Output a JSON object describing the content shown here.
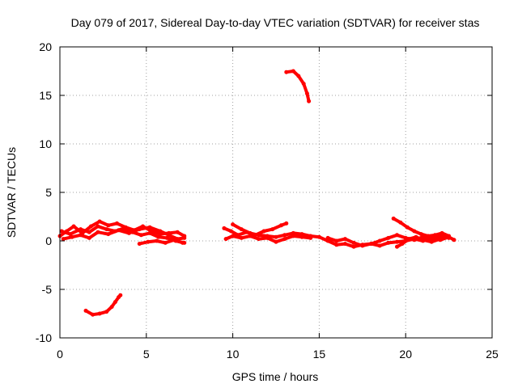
{
  "chart_data": {
    "type": "scatter",
    "title": "Day 079 of 2017, Sidereal Day-to-day VTEC variation (SDTVAR) for receiver stas",
    "xlabel": "GPS time / hours",
    "ylabel": "SDTVAR / TECUs",
    "xlim": [
      0,
      25
    ],
    "ylim": [
      -10,
      20
    ],
    "xticks": [
      0,
      5,
      10,
      15,
      20,
      25
    ],
    "yticks": [
      -10,
      -5,
      0,
      5,
      10,
      15,
      20
    ],
    "grid": true,
    "color": "#ff0000",
    "series": [
      {
        "name": "segment-1",
        "points": [
          [
            0.0,
            0.5
          ],
          [
            0.4,
            1.0
          ],
          [
            0.8,
            1.5
          ],
          [
            1.3,
            0.8
          ],
          [
            1.8,
            1.5
          ],
          [
            2.3,
            2.0
          ],
          [
            2.8,
            1.6
          ],
          [
            3.3,
            1.8
          ],
          [
            3.8,
            1.4
          ],
          [
            4.3,
            1.1
          ],
          [
            4.8,
            1.5
          ],
          [
            5.3,
            1.0
          ],
          [
            5.8,
            0.7
          ],
          [
            6.3,
            0.8
          ],
          [
            6.8,
            0.9
          ],
          [
            7.2,
            0.5
          ]
        ]
      },
      {
        "name": "segment-2",
        "points": [
          [
            0.1,
            1.0
          ],
          [
            0.6,
            0.7
          ],
          [
            1.2,
            1.2
          ],
          [
            1.7,
            0.9
          ],
          [
            2.2,
            1.5
          ],
          [
            2.7,
            1.2
          ],
          [
            3.2,
            1.0
          ],
          [
            3.7,
            1.3
          ],
          [
            4.2,
            0.9
          ],
          [
            4.7,
            0.6
          ],
          [
            5.2,
            0.8
          ],
          [
            5.7,
            0.4
          ],
          [
            6.2,
            0.3
          ],
          [
            6.7,
            0.0
          ],
          [
            7.2,
            -0.2
          ]
        ]
      },
      {
        "name": "segment-3",
        "points": [
          [
            0.2,
            0.2
          ],
          [
            0.7,
            0.4
          ],
          [
            1.2,
            0.6
          ],
          [
            1.7,
            0.3
          ],
          [
            2.2,
            0.9
          ],
          [
            2.8,
            0.7
          ],
          [
            3.4,
            1.1
          ],
          [
            4.0,
            0.8
          ],
          [
            4.6,
            1.2
          ],
          [
            5.2,
            1.4
          ],
          [
            5.8,
            1.0
          ],
          [
            6.3,
            0.6
          ],
          [
            6.8,
            0.2
          ],
          [
            7.2,
            0.3
          ]
        ]
      },
      {
        "name": "segment-4",
        "points": [
          [
            4.6,
            -0.3
          ],
          [
            5.1,
            -0.1
          ],
          [
            5.6,
            0.0
          ],
          [
            6.1,
            -0.2
          ],
          [
            6.6,
            0.1
          ],
          [
            7.1,
            -0.2
          ]
        ]
      },
      {
        "name": "segment-5",
        "points": [
          [
            1.5,
            -7.2
          ],
          [
            1.9,
            -7.6
          ],
          [
            2.3,
            -7.5
          ],
          [
            2.7,
            -7.3
          ],
          [
            3.0,
            -6.8
          ],
          [
            3.2,
            -6.3
          ],
          [
            3.4,
            -5.8
          ],
          [
            3.5,
            -5.6
          ]
        ]
      },
      {
        "name": "segment-6",
        "points": [
          [
            9.5,
            1.3
          ],
          [
            9.9,
            1.0
          ],
          [
            10.3,
            0.6
          ],
          [
            10.8,
            0.9
          ],
          [
            11.3,
            0.6
          ],
          [
            11.8,
            1.0
          ],
          [
            12.3,
            1.2
          ],
          [
            12.8,
            1.6
          ],
          [
            13.1,
            1.8
          ]
        ]
      },
      {
        "name": "segment-7",
        "points": [
          [
            9.6,
            0.2
          ],
          [
            10.0,
            0.5
          ],
          [
            10.5,
            0.3
          ],
          [
            11.0,
            0.5
          ],
          [
            11.5,
            0.2
          ],
          [
            12.0,
            0.3
          ],
          [
            12.5,
            -0.1
          ],
          [
            13.0,
            0.2
          ],
          [
            13.5,
            0.5
          ],
          [
            14.0,
            0.4
          ],
          [
            14.5,
            0.3
          ]
        ]
      },
      {
        "name": "segment-8",
        "points": [
          [
            10.0,
            1.7
          ],
          [
            10.5,
            1.2
          ],
          [
            11.0,
            0.8
          ],
          [
            11.5,
            0.6
          ],
          [
            12.0,
            0.5
          ],
          [
            12.5,
            0.4
          ],
          [
            13.0,
            0.6
          ],
          [
            13.5,
            0.8
          ],
          [
            14.0,
            0.7
          ],
          [
            14.5,
            0.5
          ],
          [
            15.0,
            0.4
          ],
          [
            15.5,
            0.0
          ],
          [
            16.0,
            -0.4
          ],
          [
            16.5,
            -0.3
          ],
          [
            17.0,
            -0.6
          ],
          [
            17.5,
            -0.4
          ],
          [
            18.0,
            -0.3
          ],
          [
            18.5,
            0.0
          ],
          [
            19.0,
            0.3
          ],
          [
            19.5,
            0.6
          ],
          [
            20.0,
            0.3
          ],
          [
            20.5,
            0.1
          ],
          [
            21.0,
            0.4
          ],
          [
            21.5,
            0.2
          ],
          [
            22.0,
            0.5
          ],
          [
            22.5,
            0.3
          ]
        ]
      },
      {
        "name": "segment-9",
        "points": [
          [
            15.5,
            0.3
          ],
          [
            16.0,
            0.0
          ],
          [
            16.5,
            0.2
          ],
          [
            17.0,
            -0.2
          ],
          [
            17.5,
            -0.5
          ],
          [
            18.0,
            -0.3
          ],
          [
            18.5,
            -0.5
          ],
          [
            19.0,
            -0.2
          ],
          [
            19.5,
            -0.1
          ],
          [
            20.0,
            0.0
          ],
          [
            20.5,
            0.2
          ],
          [
            21.0,
            0.0
          ],
          [
            21.5,
            0.3
          ],
          [
            22.0,
            0.1
          ],
          [
            22.5,
            0.4
          ],
          [
            22.8,
            0.1
          ]
        ]
      },
      {
        "name": "segment-10",
        "points": [
          [
            19.3,
            2.3
          ],
          [
            19.7,
            1.9
          ],
          [
            20.1,
            1.4
          ],
          [
            20.5,
            1.0
          ],
          [
            20.9,
            0.7
          ],
          [
            21.3,
            0.5
          ],
          [
            21.7,
            0.6
          ],
          [
            22.1,
            0.8
          ],
          [
            22.5,
            0.5
          ]
        ]
      },
      {
        "name": "segment-11",
        "points": [
          [
            19.5,
            -0.6
          ],
          [
            19.8,
            -0.3
          ],
          [
            20.2,
            0.2
          ],
          [
            20.6,
            0.4
          ],
          [
            21.0,
            0.1
          ],
          [
            21.5,
            -0.1
          ],
          [
            22.0,
            0.2
          ]
        ]
      },
      {
        "name": "segment-12",
        "points": [
          [
            13.1,
            17.4
          ],
          [
            13.5,
            17.5
          ],
          [
            13.8,
            17.0
          ],
          [
            14.1,
            16.2
          ],
          [
            14.3,
            15.2
          ],
          [
            14.4,
            14.4
          ]
        ]
      }
    ]
  }
}
